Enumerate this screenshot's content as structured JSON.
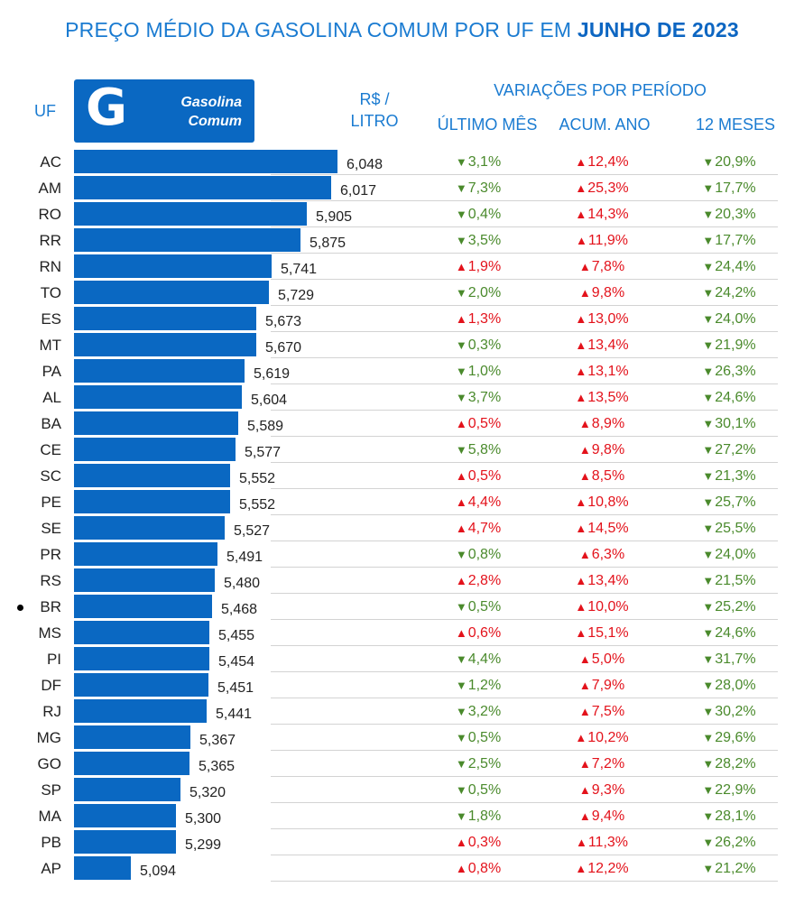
{
  "title_prefix": "PREÇO MÉDIO DA GASOLINA COMUM POR UF EM ",
  "title_bold": "JUNHO DE 2023",
  "header": {
    "uf": "UF",
    "logo_letter": "G",
    "logo_line1": "Gasolina",
    "logo_line2": "Comum",
    "price_line1": "R$ /",
    "price_line2": "LITRO",
    "variations": "VARIAÇÕES POR PERÍODO",
    "col_month": "ÚLTIMO MÊS",
    "col_year": "ACUM. ANO",
    "col_12m": "12 MESES"
  },
  "colors": {
    "bar": "#0a68c2",
    "up": "#e3121b",
    "down": "#4a8a2c",
    "title": "#1a7bd1"
  },
  "chart_data": {
    "type": "bar",
    "orientation": "horizontal",
    "title": "PREÇO MÉDIO DA GASOLINA COMUM POR UF EM JUNHO DE 2023",
    "ylabel": "UF",
    "xlabel": "R$ / LITRO",
    "categories": [
      "AC",
      "AM",
      "RO",
      "RR",
      "RN",
      "TO",
      "ES",
      "MT",
      "PA",
      "AL",
      "BA",
      "CE",
      "SC",
      "PE",
      "SE",
      "PR",
      "RS",
      "BR",
      "MS",
      "PI",
      "DF",
      "RJ",
      "MG",
      "GO",
      "SP",
      "MA",
      "PB",
      "AP"
    ],
    "values": [
      6.048,
      6.017,
      5.905,
      5.875,
      5.741,
      5.729,
      5.673,
      5.67,
      5.619,
      5.604,
      5.589,
      5.577,
      5.552,
      5.552,
      5.527,
      5.491,
      5.48,
      5.468,
      5.455,
      5.454,
      5.451,
      5.441,
      5.367,
      5.365,
      5.32,
      5.3,
      5.299,
      5.094
    ],
    "value_labels": [
      "6,048",
      "6,017",
      "5,905",
      "5,875",
      "5,741",
      "5,729",
      "5,673",
      "5,670",
      "5,619",
      "5,604",
      "5,589",
      "5,577",
      "5,552",
      "5,552",
      "5,527",
      "5,491",
      "5,480",
      "5,468",
      "5,455",
      "5,454",
      "5,451",
      "5,441",
      "5,367",
      "5,365",
      "5,320",
      "5,300",
      "5,299",
      "5,094"
    ],
    "highlight": "BR",
    "variations": [
      {
        "name": "ÚLTIMO MÊS",
        "direction": [
          "down",
          "down",
          "down",
          "down",
          "up",
          "down",
          "up",
          "down",
          "down",
          "down",
          "up",
          "down",
          "up",
          "up",
          "up",
          "down",
          "up",
          "down",
          "up",
          "down",
          "down",
          "down",
          "down",
          "down",
          "down",
          "down",
          "up",
          "up"
        ],
        "labels": [
          "3,1%",
          "7,3%",
          "0,4%",
          "3,5%",
          "1,9%",
          "2,0%",
          "1,3%",
          "0,3%",
          "1,0%",
          "3,7%",
          "0,5%",
          "5,8%",
          "0,5%",
          "4,4%",
          "4,7%",
          "0,8%",
          "2,8%",
          "0,5%",
          "0,6%",
          "4,4%",
          "1,2%",
          "3,2%",
          "0,5%",
          "2,5%",
          "0,5%",
          "1,8%",
          "0,3%",
          "0,8%"
        ]
      },
      {
        "name": "ACUM. ANO",
        "direction": [
          "up",
          "up",
          "up",
          "up",
          "up",
          "up",
          "up",
          "up",
          "up",
          "up",
          "up",
          "up",
          "up",
          "up",
          "up",
          "up",
          "up",
          "up",
          "up",
          "up",
          "up",
          "up",
          "up",
          "up",
          "up",
          "up",
          "up",
          "up"
        ],
        "labels": [
          "12,4%",
          "25,3%",
          "14,3%",
          "11,9%",
          "7,8%",
          "9,8%",
          "13,0%",
          "13,4%",
          "13,1%",
          "13,5%",
          "8,9%",
          "9,8%",
          "8,5%",
          "10,8%",
          "14,5%",
          "6,3%",
          "13,4%",
          "10,0%",
          "15,1%",
          "5,0%",
          "7,9%",
          "7,5%",
          "10,2%",
          "7,2%",
          "9,3%",
          "9,4%",
          "11,3%",
          "12,2%"
        ]
      },
      {
        "name": "12 MESES",
        "direction": [
          "down",
          "down",
          "down",
          "down",
          "down",
          "down",
          "down",
          "down",
          "down",
          "down",
          "down",
          "down",
          "down",
          "down",
          "down",
          "down",
          "down",
          "down",
          "down",
          "down",
          "down",
          "down",
          "down",
          "down",
          "down",
          "down",
          "down",
          "down"
        ],
        "labels": [
          "20,9%",
          "17,7%",
          "20,3%",
          "17,7%",
          "24,4%",
          "24,2%",
          "24,0%",
          "21,9%",
          "26,3%",
          "24,6%",
          "30,1%",
          "27,2%",
          "21,3%",
          "25,7%",
          "25,5%",
          "24,0%",
          "21,5%",
          "25,2%",
          "24,6%",
          "31,7%",
          "28,0%",
          "30,2%",
          "29,6%",
          "28,2%",
          "22,9%",
          "28,1%",
          "26,2%",
          "21,2%"
        ]
      }
    ]
  }
}
